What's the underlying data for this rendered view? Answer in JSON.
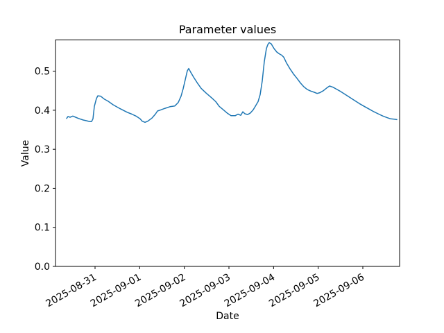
{
  "chart_data": {
    "type": "line",
    "title": "Parameter values",
    "xlabel": "Date",
    "ylabel": "Value",
    "grid": false,
    "legend": "none",
    "background": "#ffffff",
    "axis_color": "#000000",
    "x_unit": "fractional days since 2025-08-30 00:00",
    "xlim": [
      0.114,
      7.824
    ],
    "ylim": [
      0.0,
      0.58
    ],
    "x_tick_rotation": 30,
    "x_ticks": [
      {
        "pos": 1,
        "label": "2025-08-31"
      },
      {
        "pos": 2,
        "label": "2025-09-01"
      },
      {
        "pos": 3,
        "label": "2025-09-02"
      },
      {
        "pos": 4,
        "label": "2025-09-03"
      },
      {
        "pos": 5,
        "label": "2025-09-04"
      },
      {
        "pos": 6,
        "label": "2025-09-05"
      },
      {
        "pos": 7,
        "label": "2025-09-06"
      }
    ],
    "y_ticks": [
      {
        "pos": 0.0,
        "label": "0.0"
      },
      {
        "pos": 0.1,
        "label": "0.1"
      },
      {
        "pos": 0.2,
        "label": "0.2"
      },
      {
        "pos": 0.3,
        "label": "0.3"
      },
      {
        "pos": 0.4,
        "label": "0.4"
      },
      {
        "pos": 0.5,
        "label": "0.5"
      }
    ],
    "series": [
      {
        "name": "parameter-values",
        "color": "#1f77b4",
        "linewidth": 1.5,
        "points": [
          [
            0.363,
            0.379
          ],
          [
            0.394,
            0.384
          ],
          [
            0.44,
            0.382
          ],
          [
            0.503,
            0.385
          ],
          [
            0.565,
            0.382
          ],
          [
            0.627,
            0.379
          ],
          [
            0.736,
            0.375
          ],
          [
            0.813,
            0.373
          ],
          [
            0.876,
            0.371
          ],
          [
            0.922,
            0.371
          ],
          [
            0.953,
            0.378
          ],
          [
            0.984,
            0.41
          ],
          [
            1.031,
            0.43
          ],
          [
            1.062,
            0.437
          ],
          [
            1.124,
            0.436
          ],
          [
            1.202,
            0.429
          ],
          [
            1.295,
            0.423
          ],
          [
            1.404,
            0.414
          ],
          [
            1.56,
            0.404
          ],
          [
            1.715,
            0.395
          ],
          [
            1.824,
            0.39
          ],
          [
            1.917,
            0.385
          ],
          [
            2.01,
            0.378
          ],
          [
            2.057,
            0.372
          ],
          [
            2.119,
            0.369
          ],
          [
            2.181,
            0.372
          ],
          [
            2.275,
            0.38
          ],
          [
            2.352,
            0.39
          ],
          [
            2.399,
            0.398
          ],
          [
            2.477,
            0.401
          ],
          [
            2.57,
            0.405
          ],
          [
            2.679,
            0.409
          ],
          [
            2.788,
            0.411
          ],
          [
            2.865,
            0.42
          ],
          [
            2.928,
            0.436
          ],
          [
            2.974,
            0.455
          ],
          [
            3.021,
            0.478
          ],
          [
            3.068,
            0.501
          ],
          [
            3.099,
            0.507
          ],
          [
            3.145,
            0.497
          ],
          [
            3.208,
            0.485
          ],
          [
            3.285,
            0.471
          ],
          [
            3.378,
            0.456
          ],
          [
            3.487,
            0.444
          ],
          [
            3.612,
            0.432
          ],
          [
            3.705,
            0.422
          ],
          [
            3.782,
            0.41
          ],
          [
            3.876,
            0.401
          ],
          [
            3.969,
            0.392
          ],
          [
            4.047,
            0.386
          ],
          [
            4.14,
            0.386
          ],
          [
            4.202,
            0.39
          ],
          [
            4.264,
            0.387
          ],
          [
            4.311,
            0.396
          ],
          [
            4.357,
            0.391
          ],
          [
            4.42,
            0.389
          ],
          [
            4.482,
            0.393
          ],
          [
            4.544,
            0.401
          ],
          [
            4.591,
            0.41
          ],
          [
            4.653,
            0.422
          ],
          [
            4.7,
            0.44
          ],
          [
            4.746,
            0.475
          ],
          [
            4.793,
            0.525
          ],
          [
            4.84,
            0.558
          ],
          [
            4.871,
            0.568
          ],
          [
            4.902,
            0.573
          ],
          [
            4.948,
            0.57
          ],
          [
            5.011,
            0.558
          ],
          [
            5.073,
            0.549
          ],
          [
            5.135,
            0.544
          ],
          [
            5.182,
            0.541
          ],
          [
            5.228,
            0.536
          ],
          [
            5.291,
            0.521
          ],
          [
            5.368,
            0.506
          ],
          [
            5.446,
            0.493
          ],
          [
            5.524,
            0.482
          ],
          [
            5.601,
            0.47
          ],
          [
            5.679,
            0.46
          ],
          [
            5.757,
            0.453
          ],
          [
            5.835,
            0.449
          ],
          [
            5.912,
            0.446
          ],
          [
            5.975,
            0.443
          ],
          [
            6.037,
            0.445
          ],
          [
            6.114,
            0.45
          ],
          [
            6.192,
            0.457
          ],
          [
            6.254,
            0.462
          ],
          [
            6.332,
            0.459
          ],
          [
            6.41,
            0.454
          ],
          [
            6.487,
            0.449
          ],
          [
            6.596,
            0.441
          ],
          [
            6.705,
            0.433
          ],
          [
            6.814,
            0.425
          ],
          [
            6.923,
            0.417
          ],
          [
            7.031,
            0.41
          ],
          [
            7.14,
            0.403
          ],
          [
            7.249,
            0.396
          ],
          [
            7.358,
            0.39
          ],
          [
            7.451,
            0.385
          ],
          [
            7.544,
            0.381
          ],
          [
            7.622,
            0.378
          ],
          [
            7.7,
            0.377
          ],
          [
            7.762,
            0.376
          ]
        ]
      }
    ]
  }
}
